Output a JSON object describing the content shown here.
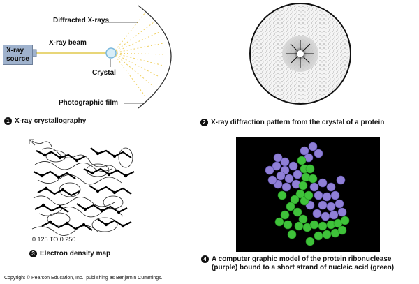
{
  "panel1": {
    "source_label_line1": "X-ray",
    "source_label_line2": "source",
    "beam_label": "X-ray beam",
    "diffracted_label": "Diffracted X-rays",
    "crystal_label": "Crystal",
    "film_label": "Photographic film",
    "caption_number": "1",
    "caption": "X-ray crystallography"
  },
  "panel2": {
    "caption_number": "2",
    "caption": "X-ray diffraction pattern from the crystal of a protein"
  },
  "panel3": {
    "map_label": "0.125 TO 0.250",
    "caption_number": "3",
    "caption": "Electron density map"
  },
  "panel4": {
    "caption_number": "4",
    "caption_line1": "A computer graphic model of the protein ribonuclease",
    "caption_line2": "(purple) bound to a short strand of nucleic acid (green)",
    "colors": {
      "background": "#000000",
      "protein": "#8f7fd6",
      "nucleic_acid": "#3fc23a"
    }
  },
  "footer": {
    "copyright": "Copyright © Pearson Education, Inc., publishing as Benjamin Cummings."
  }
}
